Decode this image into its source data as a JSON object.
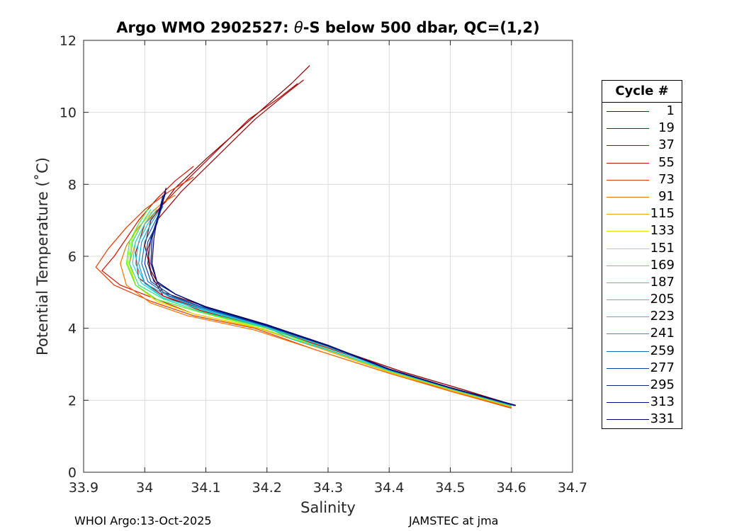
{
  "chart_data": {
    "type": "line",
    "title_parts": {
      "prefix": "Argo WMO 2902527: ",
      "theta": "θ",
      "suffix": "-S below 500 dbar,  QC=(1,2)"
    },
    "xlabel": "Salinity",
    "ylabel": "Potential Temperature (˚C)",
    "xlim": [
      33.9,
      34.7
    ],
    "ylim": [
      0,
      12
    ],
    "xticks": [
      33.9,
      34.0,
      34.1,
      34.2,
      34.3,
      34.4,
      34.5,
      34.6,
      34.7
    ],
    "xtick_labels": [
      "33.9",
      "34",
      "34.1",
      "34.2",
      "34.3",
      "34.4",
      "34.5",
      "34.6",
      "34.7"
    ],
    "yticks": [
      0,
      2,
      4,
      6,
      8,
      10,
      12
    ],
    "ytick_labels": [
      "0",
      "2",
      "4",
      "6",
      "8",
      "10",
      "12"
    ],
    "grid": true,
    "legend_position": "right",
    "legend_title": "Cycle #",
    "series": [
      {
        "name": "1",
        "color": "#800000",
        "x": [
          34.607,
          34.52,
          34.42,
          34.3,
          34.2,
          34.1,
          34.03,
          34.01,
          34.0,
          34.01,
          34.05,
          34.1,
          34.18,
          34.24,
          34.27
        ],
        "y": [
          1.85,
          2.3,
          2.8,
          3.5,
          4.1,
          4.6,
          5.0,
          5.6,
          6.3,
          7.0,
          7.9,
          8.7,
          9.9,
          10.8,
          11.3
        ]
      },
      {
        "name": "19",
        "color": "#990000",
        "x": [
          34.605,
          34.52,
          34.42,
          34.3,
          34.2,
          34.1,
          34.03,
          34.01,
          34.005,
          34.02,
          34.06,
          34.12,
          34.18,
          34.23,
          34.26
        ],
        "y": [
          1.85,
          2.3,
          2.8,
          3.5,
          4.0,
          4.5,
          4.9,
          5.5,
          6.2,
          7.0,
          7.8,
          8.8,
          9.8,
          10.5,
          10.9
        ]
      },
      {
        "name": "37",
        "color": "#b30000",
        "x": [
          34.6,
          34.51,
          34.41,
          34.3,
          34.19,
          34.09,
          34.03,
          33.99,
          33.985,
          34.0,
          34.05,
          34.11,
          34.17,
          34.22,
          34.25
        ],
        "y": [
          1.8,
          2.3,
          2.8,
          3.45,
          4.05,
          4.5,
          4.9,
          5.4,
          6.1,
          6.9,
          7.8,
          8.8,
          9.8,
          10.4,
          10.8
        ]
      },
      {
        "name": "55",
        "color": "#cc1100",
        "x": [
          34.6,
          34.5,
          34.4,
          34.29,
          34.19,
          34.08,
          34.02,
          33.96,
          33.93,
          33.95,
          33.97,
          33.99,
          34.02,
          34.05,
          34.08
        ],
        "y": [
          1.8,
          2.25,
          2.8,
          3.45,
          4.0,
          4.4,
          4.8,
          5.2,
          5.6,
          6.0,
          6.5,
          7.0,
          7.6,
          8.1,
          8.5
        ]
      },
      {
        "name": "73",
        "color": "#e03a00",
        "x": [
          34.6,
          34.5,
          34.4,
          34.28,
          34.18,
          34.08,
          34.01,
          33.95,
          33.92,
          33.94,
          33.97,
          34.0,
          34.04,
          34.08
        ],
        "y": [
          1.78,
          2.25,
          2.75,
          3.4,
          4.0,
          4.35,
          4.75,
          5.2,
          5.7,
          6.2,
          6.8,
          7.3,
          7.8,
          8.2
        ]
      },
      {
        "name": "91",
        "color": "#f07000",
        "x": [
          34.6,
          34.5,
          34.4,
          34.28,
          34.18,
          34.07,
          34.01,
          33.97,
          33.96,
          33.97,
          33.99,
          34.01,
          34.03,
          34.05
        ],
        "y": [
          1.8,
          2.25,
          2.75,
          3.4,
          3.95,
          4.35,
          4.7,
          5.2,
          5.8,
          6.3,
          6.8,
          7.2,
          7.5,
          7.7
        ]
      },
      {
        "name": "115",
        "color": "#f5a300",
        "x": [
          34.6,
          34.5,
          34.4,
          34.29,
          34.19,
          34.08,
          34.02,
          33.985,
          33.975,
          33.985,
          34.0,
          34.02
        ],
        "y": [
          1.82,
          2.28,
          2.78,
          3.42,
          3.98,
          4.4,
          4.75,
          5.2,
          5.8,
          6.4,
          6.9,
          7.3
        ]
      },
      {
        "name": "133",
        "color": "#e8e000",
        "x": [
          34.6,
          34.5,
          34.4,
          34.29,
          34.19,
          34.08,
          34.02,
          33.985,
          33.975,
          33.98,
          33.995,
          34.01
        ],
        "y": [
          1.83,
          2.3,
          2.8,
          3.45,
          4.0,
          4.4,
          4.75,
          5.2,
          5.8,
          6.4,
          6.9,
          7.2
        ]
      },
      {
        "name": "151",
        "color": "#b4f000",
        "x": [
          34.6,
          34.5,
          34.4,
          34.29,
          34.19,
          34.09,
          34.02,
          33.985,
          33.972,
          33.978,
          33.99,
          34.005
        ],
        "y": [
          1.84,
          2.3,
          2.8,
          3.45,
          4.0,
          4.45,
          4.8,
          5.2,
          5.8,
          6.4,
          6.9,
          7.3
        ]
      },
      {
        "name": "169",
        "color": "#55e83a",
        "x": [
          34.6,
          34.5,
          34.4,
          34.29,
          34.2,
          34.09,
          34.02,
          33.985,
          33.97,
          33.975,
          33.99,
          34.005
        ],
        "y": [
          1.85,
          2.32,
          2.82,
          3.47,
          4.0,
          4.45,
          4.8,
          5.2,
          5.8,
          6.4,
          6.9,
          7.3
        ]
      },
      {
        "name": "187",
        "color": "#2ce08a",
        "x": [
          34.6,
          34.5,
          34.4,
          34.29,
          34.2,
          34.09,
          34.03,
          33.99,
          33.975,
          33.98,
          33.995,
          34.01
        ],
        "y": [
          1.85,
          2.32,
          2.82,
          3.47,
          4.02,
          4.47,
          4.82,
          5.2,
          5.8,
          6.4,
          6.9,
          7.3
        ]
      },
      {
        "name": "205",
        "color": "#23d8c8",
        "x": [
          34.6,
          34.5,
          34.4,
          34.3,
          34.2,
          34.1,
          34.03,
          33.995,
          33.98,
          33.985,
          34.0,
          34.015
        ],
        "y": [
          1.86,
          2.33,
          2.83,
          3.48,
          4.03,
          4.48,
          4.85,
          5.25,
          5.8,
          6.4,
          6.9,
          7.3
        ]
      },
      {
        "name": "223",
        "color": "#1ac8e8",
        "x": [
          34.6,
          34.5,
          34.4,
          34.3,
          34.24,
          34.2,
          34.1,
          34.03,
          34.0,
          33.985,
          33.99,
          34.005,
          34.02
        ],
        "y": [
          1.86,
          2.33,
          2.83,
          3.4,
          3.7,
          4.03,
          4.5,
          4.85,
          5.25,
          5.8,
          6.4,
          6.9,
          7.3
        ]
      },
      {
        "name": "241",
        "color": "#16a0d0",
        "x": [
          34.6,
          34.5,
          34.4,
          34.3,
          34.2,
          34.1,
          34.04,
          34.0,
          33.99,
          33.995,
          34.01,
          34.025
        ],
        "y": [
          1.86,
          2.33,
          2.84,
          3.5,
          4.05,
          4.52,
          4.88,
          5.25,
          5.8,
          6.4,
          6.9,
          7.3
        ]
      },
      {
        "name": "259",
        "color": "#1070b8",
        "x": [
          34.605,
          34.5,
          34.4,
          34.3,
          34.2,
          34.1,
          34.04,
          34.005,
          33.995,
          34.0,
          34.015,
          34.03
        ],
        "y": [
          1.86,
          2.34,
          2.85,
          3.5,
          4.05,
          4.55,
          4.9,
          5.3,
          5.8,
          6.4,
          6.9,
          7.4
        ]
      },
      {
        "name": "277",
        "color": "#0a40a0",
        "x": [
          34.605,
          34.5,
          34.4,
          34.3,
          34.2,
          34.1,
          34.045,
          34.01,
          34.0,
          34.005,
          34.02,
          34.03
        ],
        "y": [
          1.86,
          2.34,
          2.85,
          3.5,
          4.06,
          4.55,
          4.9,
          5.3,
          5.8,
          6.4,
          6.9,
          7.5
        ]
      },
      {
        "name": "295",
        "color": "#062a80",
        "x": [
          34.605,
          34.5,
          34.4,
          34.3,
          34.2,
          34.1,
          34.05,
          34.015,
          34.005,
          34.01,
          34.02,
          34.03
        ],
        "y": [
          1.86,
          2.35,
          2.86,
          3.52,
          4.08,
          4.58,
          4.95,
          5.3,
          5.8,
          6.5,
          7.0,
          7.7
        ]
      },
      {
        "name": "313",
        "color": "#000f8c",
        "x": [
          34.607,
          34.5,
          34.4,
          34.3,
          34.2,
          34.1,
          34.05,
          34.02,
          34.01,
          34.012,
          34.02,
          34.035
        ],
        "y": [
          1.86,
          2.35,
          2.86,
          3.52,
          4.08,
          4.58,
          4.95,
          5.3,
          5.8,
          6.5,
          7.0,
          7.8
        ]
      },
      {
        "name": "331",
        "color": "#00006e",
        "x": [
          34.607,
          34.5,
          34.4,
          34.3,
          34.2,
          34.1,
          34.05,
          34.02,
          34.012,
          34.015,
          34.02,
          34.035
        ],
        "y": [
          1.86,
          2.35,
          2.87,
          3.53,
          4.1,
          4.6,
          4.95,
          5.3,
          5.8,
          6.5,
          7.0,
          7.9
        ]
      }
    ]
  },
  "footer": {
    "left": "WHOI Argo:13-Oct-2025",
    "right": "JAMSTEC at jma"
  }
}
